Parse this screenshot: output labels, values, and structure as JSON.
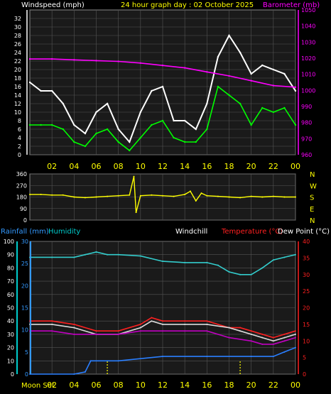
{
  "colors": {
    "background": "#000000",
    "plot_bg": "#1a1a1a",
    "grid": "#555555",
    "frame": "#888888",
    "white_text": "#ffffff",
    "yellow": "#ffff00",
    "magenta": "#ff00ff",
    "green": "#00ff00",
    "cyan": "#00cccc",
    "blue": "#3399ff",
    "red": "#ff2020",
    "orange": "#ff6a00",
    "windchill": "#dddddd",
    "temperature": "#ff2020",
    "dewpoint": "#c000c0",
    "humidity": "#33cccc",
    "rainfall": "#2a7fff"
  },
  "chart_data": [
    {
      "id": "wind",
      "type": "line",
      "title": "24 hour graph day : 02 October 2025",
      "left_axis_label": "Windspeed (mph)",
      "right_axis_label": "Barometer (mb)",
      "ylim_left": [
        0,
        34
      ],
      "ylim_right": [
        960,
        1050
      ],
      "left_ticks": [
        "0",
        "2",
        "4",
        "6",
        "8",
        "10",
        "12",
        "14",
        "16",
        "18",
        "20",
        "22",
        "24",
        "26",
        "28",
        "30",
        "32"
      ],
      "right_ticks": [
        "960",
        "970",
        "980",
        "990",
        "1000",
        "1010",
        "1020",
        "1030",
        "1040",
        "1050"
      ],
      "x_ticks": [
        "02",
        "04",
        "06",
        "08",
        "10",
        "12",
        "14",
        "16",
        "18",
        "20",
        "22",
        "00"
      ],
      "series": [
        {
          "key": "gust",
          "x": [
            0,
            1,
            2,
            3,
            4,
            5,
            6,
            7,
            8,
            9,
            10,
            11,
            12,
            13,
            14,
            15,
            16,
            17,
            18,
            19,
            20,
            21,
            22,
            23,
            24
          ],
          "values": [
            17,
            15,
            15,
            12,
            7,
            5,
            10,
            12,
            6,
            3,
            10,
            15,
            16,
            8,
            8,
            6,
            12,
            23,
            28,
            24,
            19,
            21,
            20,
            19,
            15
          ]
        },
        {
          "key": "avg_wind",
          "x": [
            0,
            1,
            2,
            3,
            4,
            5,
            6,
            7,
            8,
            9,
            10,
            11,
            12,
            13,
            14,
            15,
            16,
            17,
            18,
            19,
            20,
            21,
            22,
            23,
            24
          ],
          "values": [
            7,
            7,
            7,
            6,
            3,
            2,
            5,
            6,
            3,
            1,
            4,
            7,
            8,
            4,
            3,
            3,
            6,
            16,
            14,
            12,
            7,
            11,
            10,
            11,
            7
          ]
        },
        {
          "key": "barometer",
          "x": [
            0,
            2,
            4,
            6,
            8,
            10,
            12,
            14,
            16,
            18,
            20,
            22,
            24
          ],
          "values": [
            1019.5,
            1019.5,
            1019,
            1018.5,
            1018,
            1017,
            1015.5,
            1014,
            1011.5,
            1009,
            1006,
            1003,
            1002
          ]
        }
      ]
    },
    {
      "id": "direction",
      "type": "line",
      "ylim": [
        0,
        360
      ],
      "left_ticks": [
        "0",
        "90",
        "180",
        "270",
        "360"
      ],
      "right_labels": [
        "N",
        "W",
        "S",
        "E",
        "N"
      ],
      "series": [
        {
          "key": "wind_direction",
          "x": [
            0,
            1,
            2,
            3,
            4,
            5,
            6,
            7,
            8,
            9,
            9.4,
            9.6,
            10,
            11,
            12,
            13,
            14,
            14.5,
            15,
            15.5,
            16,
            17,
            18,
            19,
            20,
            21,
            22,
            23,
            24
          ],
          "values": [
            200,
            200,
            195,
            195,
            180,
            175,
            180,
            185,
            190,
            195,
            340,
            60,
            190,
            195,
            190,
            185,
            200,
            225,
            150,
            210,
            190,
            185,
            180,
            175,
            185,
            180,
            185,
            180,
            180
          ]
        }
      ]
    },
    {
      "id": "temperature",
      "type": "line",
      "legend": [
        "Rainfall (mm)",
        "Humidity",
        "Windchill",
        "Temperature (°C)",
        "Dew Point (°C)"
      ],
      "left_outer_ticks": [
        "0",
        "10",
        "20",
        "30",
        "40",
        "50",
        "60",
        "70",
        "80",
        "90",
        "100"
      ],
      "left_inner_ticks": [
        "0",
        "5",
        "10",
        "15",
        "20",
        "25",
        "30"
      ],
      "right_ticks": [
        "0",
        "5",
        "10",
        "15",
        "20",
        "25",
        "30",
        "35",
        "40"
      ],
      "ylim_humidity": [
        0,
        100
      ],
      "ylim_rain": [
        0,
        30
      ],
      "ylim_temp": [
        0,
        40
      ],
      "x_ticks": [
        "02",
        "04",
        "06",
        "08",
        "10",
        "12",
        "14",
        "16",
        "18",
        "20",
        "22",
        "00"
      ],
      "moon_label": "Moon Set",
      "moon_x": [
        7,
        19
      ],
      "series": [
        {
          "key": "humidity",
          "x": [
            0,
            2,
            4,
            5,
            6,
            7,
            8,
            10,
            12,
            14,
            16,
            17,
            18,
            19,
            20,
            21,
            22,
            23,
            24
          ],
          "values": [
            88,
            88,
            88,
            90,
            92,
            90,
            90,
            89,
            85,
            84,
            84,
            82,
            77,
            75,
            75,
            80,
            86,
            88,
            90
          ]
        },
        {
          "key": "temperature",
          "x": [
            0,
            2,
            4,
            6,
            8,
            10,
            11,
            12,
            14,
            16,
            18,
            19,
            20,
            21,
            22,
            23,
            24
          ],
          "values": [
            16,
            16,
            15,
            13,
            13,
            15,
            17,
            16,
            16,
            16,
            14,
            14,
            13,
            12,
            11,
            12,
            13
          ]
        },
        {
          "key": "windchill",
          "x": [
            0,
            2,
            4,
            6,
            8,
            10,
            11,
            12,
            14,
            16,
            18,
            19,
            20,
            21,
            22,
            23,
            24
          ],
          "values": [
            15,
            15,
            14,
            12,
            12,
            14,
            16,
            15,
            15,
            15,
            14,
            13,
            12,
            11,
            10,
            11,
            12
          ]
        },
        {
          "key": "dewpoint",
          "x": [
            0,
            2,
            4,
            6,
            8,
            10,
            12,
            14,
            16,
            18,
            20,
            21,
            22,
            23,
            24
          ],
          "values": [
            13,
            13,
            12,
            12,
            12,
            13,
            13,
            13,
            13,
            11,
            10,
            9,
            9,
            10,
            11
          ]
        },
        {
          "key": "rainfall",
          "x": [
            0,
            4,
            5,
            5.5,
            8,
            12,
            16,
            20,
            22,
            23,
            24
          ],
          "values": [
            0,
            0,
            0.5,
            3,
            3,
            4,
            4,
            4,
            4,
            5,
            6
          ]
        }
      ]
    }
  ]
}
